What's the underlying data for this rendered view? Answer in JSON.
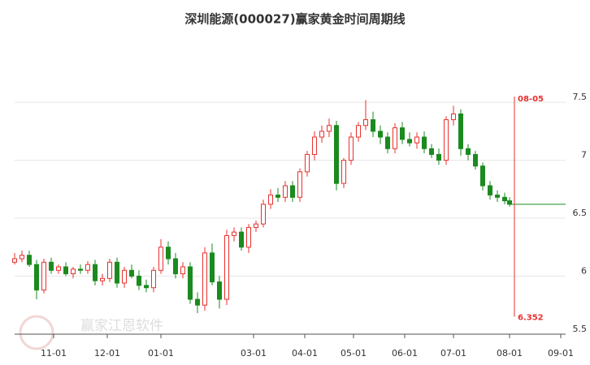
{
  "chart_data": {
    "type": "candlestick",
    "title": "深圳能源(000027)赢家黄金时间周期线",
    "watermark": "赢家江恩软件",
    "up_color": "#e8312d",
    "down_color": "#1b8a1f",
    "xlim": [
      0,
      226
    ],
    "xticks": [
      {
        "value": 16,
        "label": "11-01"
      },
      {
        "value": 38,
        "label": "12-01"
      },
      {
        "value": 60,
        "label": "01-01"
      },
      {
        "value": 98,
        "label": "03-01"
      },
      {
        "value": 119,
        "label": "04-01"
      },
      {
        "value": 139,
        "label": "05-01"
      },
      {
        "value": 160,
        "label": "06-01"
      },
      {
        "value": 180,
        "label": "07-01"
      },
      {
        "value": 203,
        "label": "08-01"
      },
      {
        "value": 224,
        "label": "09-01"
      }
    ],
    "ylim": [
      5.45,
      7.9
    ],
    "yticks": [
      5.5,
      6,
      6.5,
      7,
      7.5
    ],
    "grid": true,
    "x": [
      0,
      3,
      6,
      9,
      12,
      15,
      18,
      21,
      24,
      27,
      30,
      33,
      36,
      39,
      42,
      45,
      48,
      51,
      54,
      57,
      60,
      63,
      66,
      69,
      72,
      75,
      78,
      81,
      84,
      87,
      90,
      93,
      96,
      99,
      102,
      105,
      108,
      111,
      114,
      117,
      120,
      123,
      126,
      129,
      132,
      135,
      138,
      141,
      144,
      147,
      150,
      153,
      156,
      159,
      162,
      165,
      168,
      171,
      174,
      177,
      180,
      183,
      186,
      189,
      192,
      195,
      198,
      201,
      203
    ],
    "open": [
      6.12,
      6.15,
      6.18,
      6.1,
      5.88,
      6.12,
      6.05,
      6.08,
      6.02,
      6.06,
      6.05,
      6.1,
      5.96,
      5.98,
      6.12,
      5.94,
      6.05,
      6.0,
      5.92,
      5.9,
      6.05,
      6.25,
      6.15,
      6.02,
      6.08,
      5.8,
      5.75,
      6.2,
      5.95,
      5.8,
      6.35,
      6.38,
      6.25,
      6.42,
      6.45,
      6.62,
      6.7,
      6.68,
      6.78,
      6.68,
      6.9,
      7.05,
      7.2,
      7.25,
      7.3,
      6.8,
      7.0,
      7.2,
      7.3,
      7.35,
      7.25,
      7.2,
      7.1,
      7.28,
      7.18,
      7.15,
      7.2,
      7.1,
      7.05,
      7.0,
      7.35,
      7.4,
      7.1,
      7.05,
      6.95,
      6.78,
      6.7,
      6.68,
      6.65
    ],
    "high": [
      6.2,
      6.22,
      6.22,
      6.14,
      6.15,
      6.16,
      6.1,
      6.12,
      6.08,
      6.1,
      6.13,
      6.14,
      6.02,
      6.15,
      6.16,
      6.08,
      6.1,
      6.05,
      5.97,
      6.08,
      6.32,
      6.3,
      6.2,
      6.12,
      6.12,
      5.86,
      6.25,
      6.28,
      6.0,
      6.4,
      6.42,
      6.42,
      6.45,
      6.48,
      6.66,
      6.75,
      6.76,
      6.82,
      6.82,
      6.93,
      7.08,
      7.25,
      7.3,
      7.36,
      7.34,
      7.02,
      7.24,
      7.33,
      7.52,
      7.42,
      7.3,
      7.24,
      7.32,
      7.33,
      7.24,
      7.24,
      7.25,
      7.14,
      7.1,
      7.38,
      7.47,
      7.44,
      7.14,
      7.08,
      6.98,
      6.82,
      6.74,
      6.72,
      6.68
    ],
    "low": [
      6.1,
      6.12,
      6.08,
      5.8,
      5.85,
      6.02,
      6.02,
      6.0,
      5.98,
      6.02,
      6.02,
      5.92,
      5.92,
      5.95,
      5.9,
      5.9,
      5.98,
      5.88,
      5.86,
      5.86,
      6.02,
      6.1,
      5.98,
      5.98,
      5.76,
      5.68,
      5.7,
      5.92,
      5.72,
      5.75,
      6.3,
      6.22,
      6.2,
      6.38,
      6.42,
      6.58,
      6.64,
      6.64,
      6.64,
      6.64,
      6.86,
      7.0,
      7.15,
      7.2,
      6.74,
      6.76,
      6.96,
      7.16,
      7.26,
      7.2,
      7.14,
      7.06,
      7.06,
      7.14,
      7.12,
      7.1,
      7.06,
      7.02,
      6.96,
      6.96,
      7.3,
      7.04,
      7.0,
      6.92,
      6.74,
      6.66,
      6.64,
      6.62,
      6.6
    ],
    "close": [
      6.15,
      6.18,
      6.1,
      5.88,
      6.12,
      6.05,
      6.08,
      6.02,
      6.06,
      6.05,
      6.1,
      5.96,
      5.98,
      6.12,
      5.94,
      6.05,
      6.0,
      5.92,
      5.9,
      6.05,
      6.25,
      6.15,
      6.02,
      6.08,
      5.8,
      5.75,
      6.2,
      5.95,
      5.8,
      6.35,
      6.38,
      6.25,
      6.42,
      6.45,
      6.62,
      6.7,
      6.68,
      6.78,
      6.68,
      6.9,
      7.05,
      7.2,
      7.25,
      7.3,
      6.8,
      7.0,
      7.2,
      7.3,
      7.35,
      7.25,
      7.2,
      7.1,
      7.28,
      7.18,
      7.15,
      7.2,
      7.1,
      7.05,
      7.0,
      7.35,
      7.4,
      7.1,
      7.05,
      6.95,
      6.78,
      6.7,
      6.68,
      6.65,
      6.62
    ],
    "marker": {
      "x": 205,
      "y_range": [
        5.65,
        7.55
      ],
      "texts": [
        "08-05",
        "6.352"
      ],
      "color": "#e8312d"
    }
  }
}
